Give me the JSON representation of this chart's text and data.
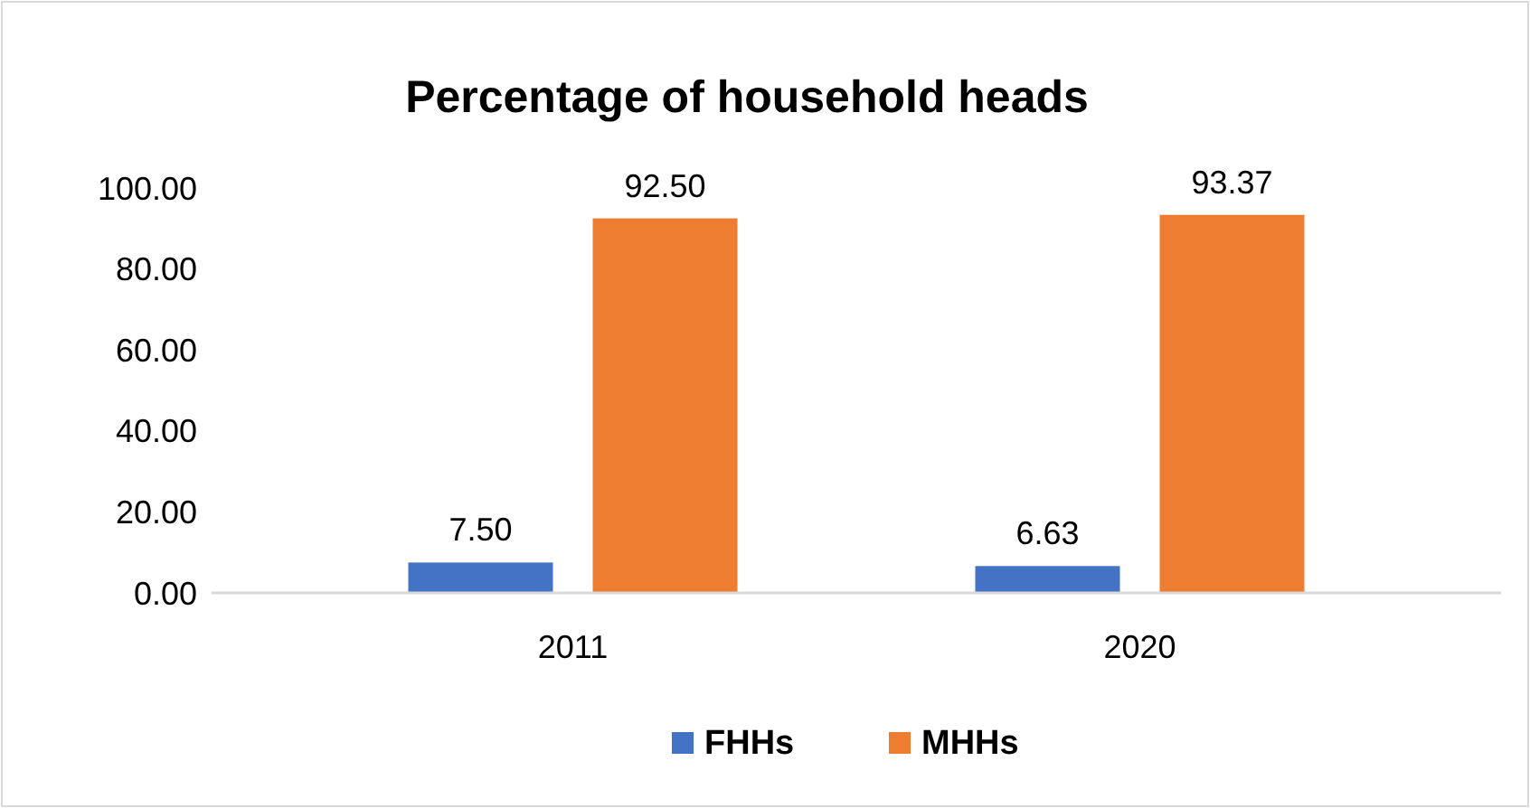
{
  "chart_data": {
    "type": "bar",
    "title": "Percentage of household heads",
    "categories": [
      "2011",
      "2020"
    ],
    "series": [
      {
        "name": "FHHs",
        "color": "#4472c4",
        "values": [
          7.5,
          6.63
        ],
        "value_labels": [
          "7.50",
          "6.63"
        ]
      },
      {
        "name": "MHHs",
        "color": "#ed7d31",
        "values": [
          92.5,
          93.37
        ],
        "value_labels": [
          "92.50",
          "93.37"
        ]
      }
    ],
    "ylim": [
      0,
      100
    ],
    "yticks": [
      {
        "value": 0,
        "label": "0.00"
      },
      {
        "value": 20,
        "label": "20.00"
      },
      {
        "value": 40,
        "label": "40.00"
      },
      {
        "value": 60,
        "label": "60.00"
      },
      {
        "value": 80,
        "label": "80.00"
      },
      {
        "value": 100,
        "label": "100.00"
      }
    ],
    "grid": false,
    "legend": "bottom"
  }
}
